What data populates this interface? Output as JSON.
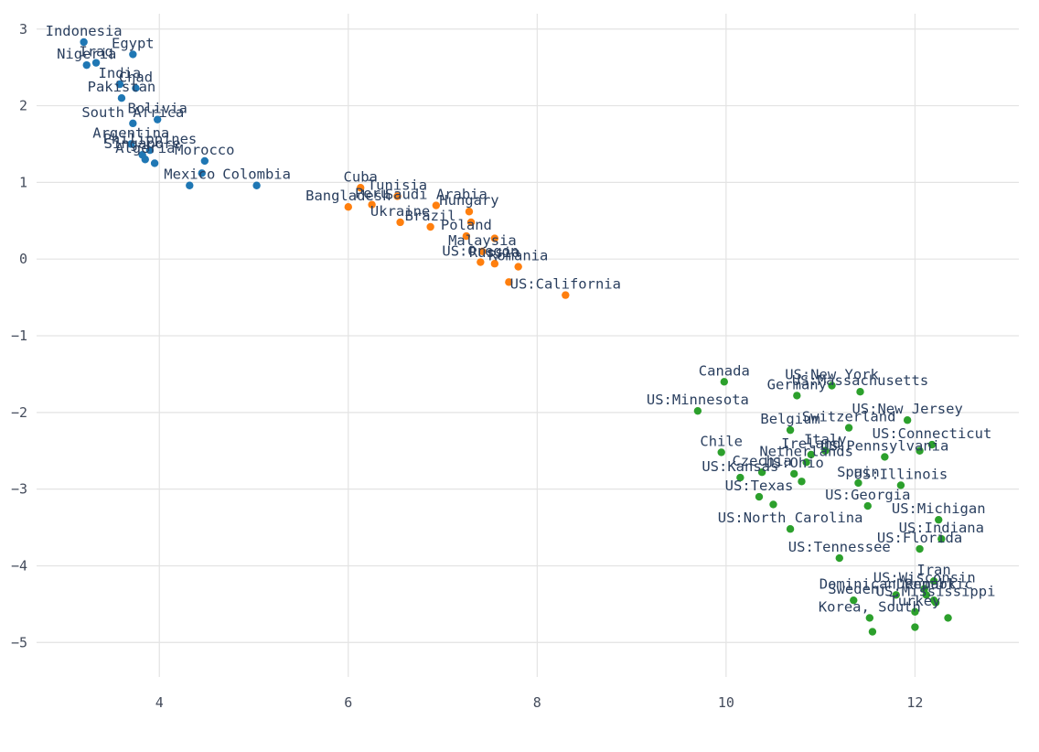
{
  "chart_data": {
    "type": "scatter",
    "title": "",
    "xlabel": "",
    "ylabel": "",
    "xlim": [
      2.7,
      13.1
    ],
    "ylim": [
      -5.45,
      3.2
    ],
    "x_ticks": [
      4,
      6,
      8,
      10,
      12
    ],
    "y_ticks": [
      3,
      2,
      1,
      0,
      -1,
      -2,
      -3,
      -4,
      -5
    ],
    "x_tick_labels": [
      "4",
      "6",
      "8",
      "10",
      "12"
    ],
    "y_tick_labels": [
      "3",
      "2",
      "1",
      "0",
      "−1",
      "−2",
      "−3",
      "−4",
      "−5"
    ],
    "grid": true,
    "legend": "none",
    "series": [
      {
        "color": "#1f77b4",
        "points": [
          {
            "label": "Indonesia",
            "x": 3.2,
            "y": 2.83
          },
          {
            "label": "Egypt",
            "x": 3.72,
            "y": 2.67
          },
          {
            "label": "Iraq",
            "x": 3.33,
            "y": 2.56
          },
          {
            "label": "Nigeria",
            "x": 3.23,
            "y": 2.53
          },
          {
            "label": "Chad",
            "x": 3.75,
            "y": 2.23
          },
          {
            "label": "India",
            "x": 3.58,
            "y": 2.28
          },
          {
            "label": "Pakistan",
            "x": 3.6,
            "y": 2.1
          },
          {
            "label": "Bolivia",
            "x": 3.98,
            "y": 1.82
          },
          {
            "label": "South Africa",
            "x": 3.72,
            "y": 1.77
          },
          {
            "label": "Argentina",
            "x": 3.7,
            "y": 1.5
          },
          {
            "label": "Philippines",
            "x": 3.9,
            "y": 1.42
          },
          {
            "label": "Singapore",
            "x": 3.82,
            "y": 1.36
          },
          {
            "label": "Algeria",
            "x": 3.85,
            "y": 1.3
          },
          {
            "label": "Morocco",
            "x": 4.48,
            "y": 1.28
          },
          {
            "label": "Colombia",
            "x": 5.03,
            "y": 0.96
          },
          {
            "label": "Mexico",
            "x": 4.32,
            "y": 0.96
          },
          {
            "label": "",
            "x": 3.95,
            "y": 1.25
          },
          {
            "label": "",
            "x": 4.45,
            "y": 1.12
          }
        ]
      },
      {
        "color": "#ff7f0e",
        "points": [
          {
            "label": "Cuba",
            "x": 6.13,
            "y": 0.93
          },
          {
            "label": "Tunisia",
            "x": 6.52,
            "y": 0.82
          },
          {
            "label": "Saudi Arabia",
            "x": 6.93,
            "y": 0.7
          },
          {
            "label": "Bangladesh",
            "x": 6.0,
            "y": 0.68
          },
          {
            "label": "Peru",
            "x": 6.25,
            "y": 0.71
          },
          {
            "label": "Hungary",
            "x": 7.28,
            "y": 0.62
          },
          {
            "label": "Ukraine",
            "x": 6.55,
            "y": 0.48
          },
          {
            "label": "Brazil",
            "x": 6.87,
            "y": 0.42
          },
          {
            "label": "Poland",
            "x": 7.25,
            "y": 0.3
          },
          {
            "label": "Malaysia",
            "x": 7.42,
            "y": 0.1
          },
          {
            "label": "US:Oregon",
            "x": 7.4,
            "y": -0.04
          },
          {
            "label": "Romania",
            "x": 7.8,
            "y": -0.1
          },
          {
            "label": "Russia",
            "x": 7.55,
            "y": -0.06
          },
          {
            "label": "US:California",
            "x": 8.3,
            "y": -0.47
          },
          {
            "label": "",
            "x": 7.7,
            "y": -0.3
          },
          {
            "label": "",
            "x": 7.3,
            "y": 0.48
          },
          {
            "label": "",
            "x": 7.55,
            "y": 0.27
          }
        ]
      },
      {
        "color": "#2ca02c",
        "points": [
          {
            "label": "Canada",
            "x": 9.98,
            "y": -1.6
          },
          {
            "label": "US:Massachusetts",
            "x": 11.42,
            "y": -1.73
          },
          {
            "label": "US:New York",
            "x": 11.12,
            "y": -1.65
          },
          {
            "label": "Germany",
            "x": 10.75,
            "y": -1.78
          },
          {
            "label": "US:Minnesota",
            "x": 9.7,
            "y": -1.98
          },
          {
            "label": "US:New Jersey",
            "x": 11.92,
            "y": -2.1
          },
          {
            "label": "Belgium",
            "x": 10.68,
            "y": -2.23
          },
          {
            "label": "Switzerland",
            "x": 11.3,
            "y": -2.2
          },
          {
            "label": "US:Connecticut",
            "x": 12.18,
            "y": -2.42
          },
          {
            "label": "Chile",
            "x": 9.95,
            "y": -2.52
          },
          {
            "label": "Italy",
            "x": 11.05,
            "y": -2.5
          },
          {
            "label": "Ireland",
            "x": 10.9,
            "y": -2.55
          },
          {
            "label": "US:Pennsylvania",
            "x": 11.68,
            "y": -2.58
          },
          {
            "label": "Netherlands",
            "x": 10.85,
            "y": -2.65
          },
          {
            "label": "US:Ohio",
            "x": 10.72,
            "y": -2.8
          },
          {
            "label": "Czechia",
            "x": 10.38,
            "y": -2.78
          },
          {
            "label": "Spain",
            "x": 11.4,
            "y": -2.92
          },
          {
            "label": "US:Kansas",
            "x": 10.15,
            "y": -2.85
          },
          {
            "label": "US:Illinois",
            "x": 11.85,
            "y": -2.95
          },
          {
            "label": "US:Texas",
            "x": 10.35,
            "y": -3.1
          },
          {
            "label": "US:Georgia",
            "x": 11.5,
            "y": -3.22
          },
          {
            "label": "US:Michigan",
            "x": 12.25,
            "y": -3.4
          },
          {
            "label": "US:North Carolina",
            "x": 10.68,
            "y": -3.52
          },
          {
            "label": "US:Indiana",
            "x": 12.28,
            "y": -3.65
          },
          {
            "label": "US:Florida",
            "x": 12.05,
            "y": -3.78
          },
          {
            "label": "US:Tennessee",
            "x": 11.2,
            "y": -3.9
          },
          {
            "label": "Iran",
            "x": 12.2,
            "y": -4.2
          },
          {
            "label": "US:Wisconsin",
            "x": 12.1,
            "y": -4.3
          },
          {
            "label": "Dominican Republic",
            "x": 11.8,
            "y": -4.38
          },
          {
            "label": "Denmark",
            "x": 12.12,
            "y": -4.38
          },
          {
            "label": "US:Mississippi",
            "x": 12.22,
            "y": -4.48
          },
          {
            "label": "Sweden",
            "x": 11.35,
            "y": -4.45
          },
          {
            "label": "Turkey",
            "x": 12.0,
            "y": -4.6
          },
          {
            "label": "Korea, South",
            "x": 11.52,
            "y": -4.68
          },
          {
            "label": "",
            "x": 12.35,
            "y": -4.68
          },
          {
            "label": "",
            "x": 12.0,
            "y": -4.8
          },
          {
            "label": "",
            "x": 11.55,
            "y": -4.86
          },
          {
            "label": "",
            "x": 10.5,
            "y": -3.2
          },
          {
            "label": "",
            "x": 10.8,
            "y": -2.9
          },
          {
            "label": "",
            "x": 12.05,
            "y": -2.5
          },
          {
            "label": "",
            "x": 12.2,
            "y": -4.45
          }
        ]
      }
    ]
  }
}
